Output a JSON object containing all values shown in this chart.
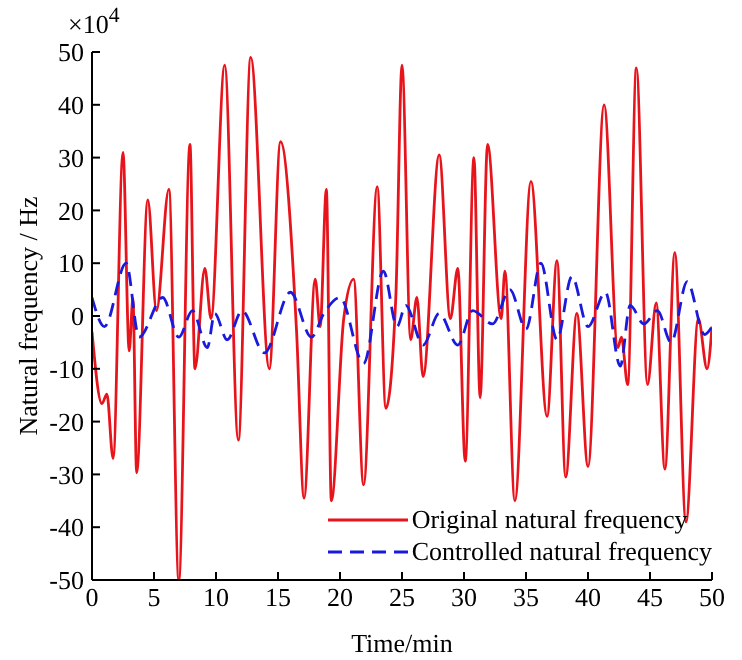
{
  "chart_data": {
    "type": "line",
    "xlabel": "Time/min",
    "ylabel": "Natural frequency / Hz",
    "annotations": [
      "×10$^{4}$"
    ],
    "xlim": [
      0,
      50
    ],
    "xticks": [
      0,
      5,
      10,
      15,
      20,
      25,
      30,
      35,
      40,
      45,
      50
    ],
    "ylim": [
      -50,
      50
    ],
    "yticks": [
      -50,
      -40,
      -30,
      -20,
      -10,
      0,
      10,
      20,
      30,
      40,
      50
    ],
    "grid": false,
    "legend": "bottom right",
    "marker": "none",
    "series": [
      {
        "name": "Original natural frequency",
        "color": "#e8141c",
        "line_style": "solid",
        "x": [
          0,
          0.8,
          1.2,
          1.7,
          2.5,
          3,
          3.3,
          3.6,
          4.5,
          5.2,
          6.2,
          7,
          7.9,
          8.3,
          9.1,
          9.6,
          10.7,
          11.8,
          12.8,
          14.3,
          15.2,
          16.5,
          17.1,
          18,
          18.4,
          18.9,
          19.3,
          20.3,
          21.1,
          21.9,
          23,
          23.7,
          24.5,
          25,
          25.7,
          26.2,
          26.7,
          28,
          28.9,
          29.5,
          30.1,
          30.8,
          31.3,
          31.9,
          33,
          33.3,
          34.1,
          35.4,
          36.7,
          37.5,
          38.2,
          39.1,
          40,
          41.3,
          42.4,
          42.7,
          43.2,
          43.9,
          44.8,
          45.5,
          46.2,
          47,
          47.9,
          48.9,
          49.6,
          50
        ],
        "values": [
          -3,
          -16.6,
          -14.8,
          -27,
          31,
          -6.6,
          3.3,
          -29.7,
          22,
          1,
          24,
          -50,
          32.5,
          -10,
          9,
          -0.5,
          47.5,
          -23.5,
          49,
          -10,
          33,
          -3,
          -34.5,
          7,
          -2,
          24,
          -35,
          -0.5,
          7,
          -32,
          24.5,
          -17.5,
          3.5,
          47.5,
          -4.5,
          3.5,
          -11.5,
          30.5,
          -0.5,
          9,
          -27.5,
          30,
          -15.5,
          32.5,
          -0.5,
          8.5,
          -35,
          25.5,
          -19,
          10.5,
          -30.5,
          0.5,
          -28.5,
          40,
          -6,
          -4,
          -13,
          47,
          -13,
          2.5,
          -29,
          12,
          -39,
          -0.5,
          -10,
          -2
        ]
      },
      {
        "name": "Controlled natural frequency",
        "color": "#1a1adc",
        "line_style": "dashed",
        "x": [
          0,
          1,
          2.75,
          3.8,
          5.7,
          7,
          8.1,
          9.3,
          9.9,
          10.9,
          12.1,
          13.9,
          16,
          17.7,
          18.7,
          20,
          21.9,
          23.5,
          24.6,
          25.3,
          26.7,
          28,
          29.5,
          30.7,
          32.3,
          33.7,
          35,
          36.2,
          37.5,
          38.7,
          40,
          41.4,
          42.6,
          43.4,
          44.5,
          45.6,
          46.7,
          48,
          49.4,
          50
        ],
        "values": [
          3.5,
          -2,
          10,
          -4,
          3.5,
          -4,
          1,
          -6,
          0.5,
          -4.5,
          1,
          -7,
          4.5,
          -4,
          0.5,
          3.5,
          -9,
          8.5,
          -2,
          2,
          -5.5,
          0.5,
          -5.5,
          1,
          -1.5,
          5,
          -2.5,
          10,
          -4.5,
          7.5,
          -2,
          4.5,
          -9.5,
          2,
          -1.5,
          1,
          -5,
          6.5,
          -3.5,
          -2
        ]
      }
    ]
  }
}
